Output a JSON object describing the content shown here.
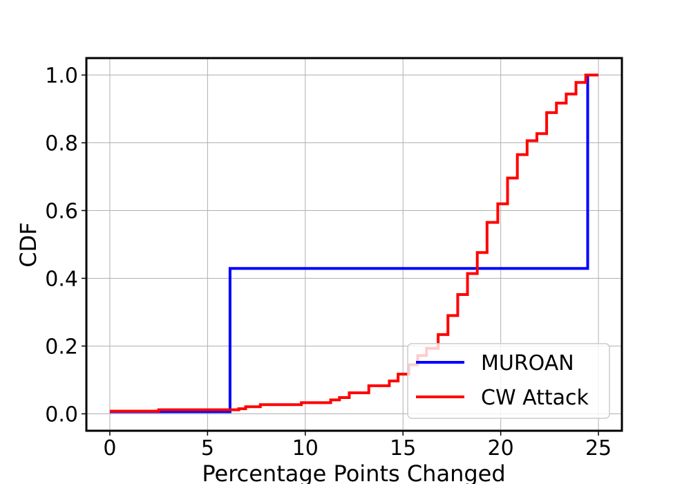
{
  "chart_data": {
    "type": "line",
    "step": true,
    "xlabel": "Percentage Points Changed",
    "ylabel": "CDF",
    "xlim": [
      -1.2,
      26.2
    ],
    "ylim": [
      -0.05,
      1.05
    ],
    "xticks": [
      0,
      5,
      10,
      15,
      20,
      25
    ],
    "yticks": [
      0.0,
      0.2,
      0.4,
      0.6,
      0.8,
      1.0
    ],
    "xtick_labels": [
      "0",
      "5",
      "10",
      "15",
      "20",
      "25"
    ],
    "ytick_labels": [
      "0.0",
      "0.2",
      "0.4",
      "0.6",
      "0.8",
      "1.0"
    ],
    "grid": true,
    "legend_position": "lower-right",
    "series": [
      {
        "name": "MUROAN",
        "color": "#0000ff",
        "points": [
          [
            0,
            0.006
          ],
          [
            6.15,
            0.006
          ],
          [
            6.15,
            0.429
          ],
          [
            24.45,
            0.429
          ],
          [
            24.45,
            1.0
          ]
        ]
      },
      {
        "name": "CW Attack",
        "color": "#ff0000",
        "points": [
          [
            0,
            0.008
          ],
          [
            2.5,
            0.008
          ],
          [
            2.5,
            0.012
          ],
          [
            6.6,
            0.012
          ],
          [
            6.6,
            0.015
          ],
          [
            6.95,
            0.015
          ],
          [
            6.95,
            0.021
          ],
          [
            7.7,
            0.021
          ],
          [
            7.7,
            0.027
          ],
          [
            9.8,
            0.027
          ],
          [
            9.8,
            0.033
          ],
          [
            11.3,
            0.033
          ],
          [
            11.3,
            0.041
          ],
          [
            11.75,
            0.041
          ],
          [
            11.75,
            0.048
          ],
          [
            12.25,
            0.048
          ],
          [
            12.25,
            0.062
          ],
          [
            13.25,
            0.062
          ],
          [
            13.25,
            0.083
          ],
          [
            14.3,
            0.083
          ],
          [
            14.3,
            0.097
          ],
          [
            14.75,
            0.097
          ],
          [
            14.75,
            0.117
          ],
          [
            15.3,
            0.117
          ],
          [
            15.3,
            0.145
          ],
          [
            15.75,
            0.145
          ],
          [
            15.75,
            0.172
          ],
          [
            16.2,
            0.172
          ],
          [
            16.2,
            0.193
          ],
          [
            16.8,
            0.193
          ],
          [
            16.8,
            0.234
          ],
          [
            17.3,
            0.234
          ],
          [
            17.3,
            0.29
          ],
          [
            17.8,
            0.29
          ],
          [
            17.8,
            0.352
          ],
          [
            18.3,
            0.352
          ],
          [
            18.3,
            0.414
          ],
          [
            18.8,
            0.414
          ],
          [
            18.8,
            0.476
          ],
          [
            19.3,
            0.476
          ],
          [
            19.3,
            0.565
          ],
          [
            19.85,
            0.565
          ],
          [
            19.85,
            0.62
          ],
          [
            20.35,
            0.62
          ],
          [
            20.35,
            0.696
          ],
          [
            20.85,
            0.696
          ],
          [
            20.85,
            0.765
          ],
          [
            21.35,
            0.765
          ],
          [
            21.35,
            0.806
          ],
          [
            21.85,
            0.806
          ],
          [
            21.85,
            0.827
          ],
          [
            22.35,
            0.827
          ],
          [
            22.35,
            0.889
          ],
          [
            22.85,
            0.889
          ],
          [
            22.85,
            0.917
          ],
          [
            23.35,
            0.917
          ],
          [
            23.35,
            0.944
          ],
          [
            23.85,
            0.944
          ],
          [
            23.85,
            0.978
          ],
          [
            24.35,
            0.978
          ],
          [
            24.35,
            1.0
          ],
          [
            25.0,
            1.0
          ]
        ]
      }
    ]
  }
}
